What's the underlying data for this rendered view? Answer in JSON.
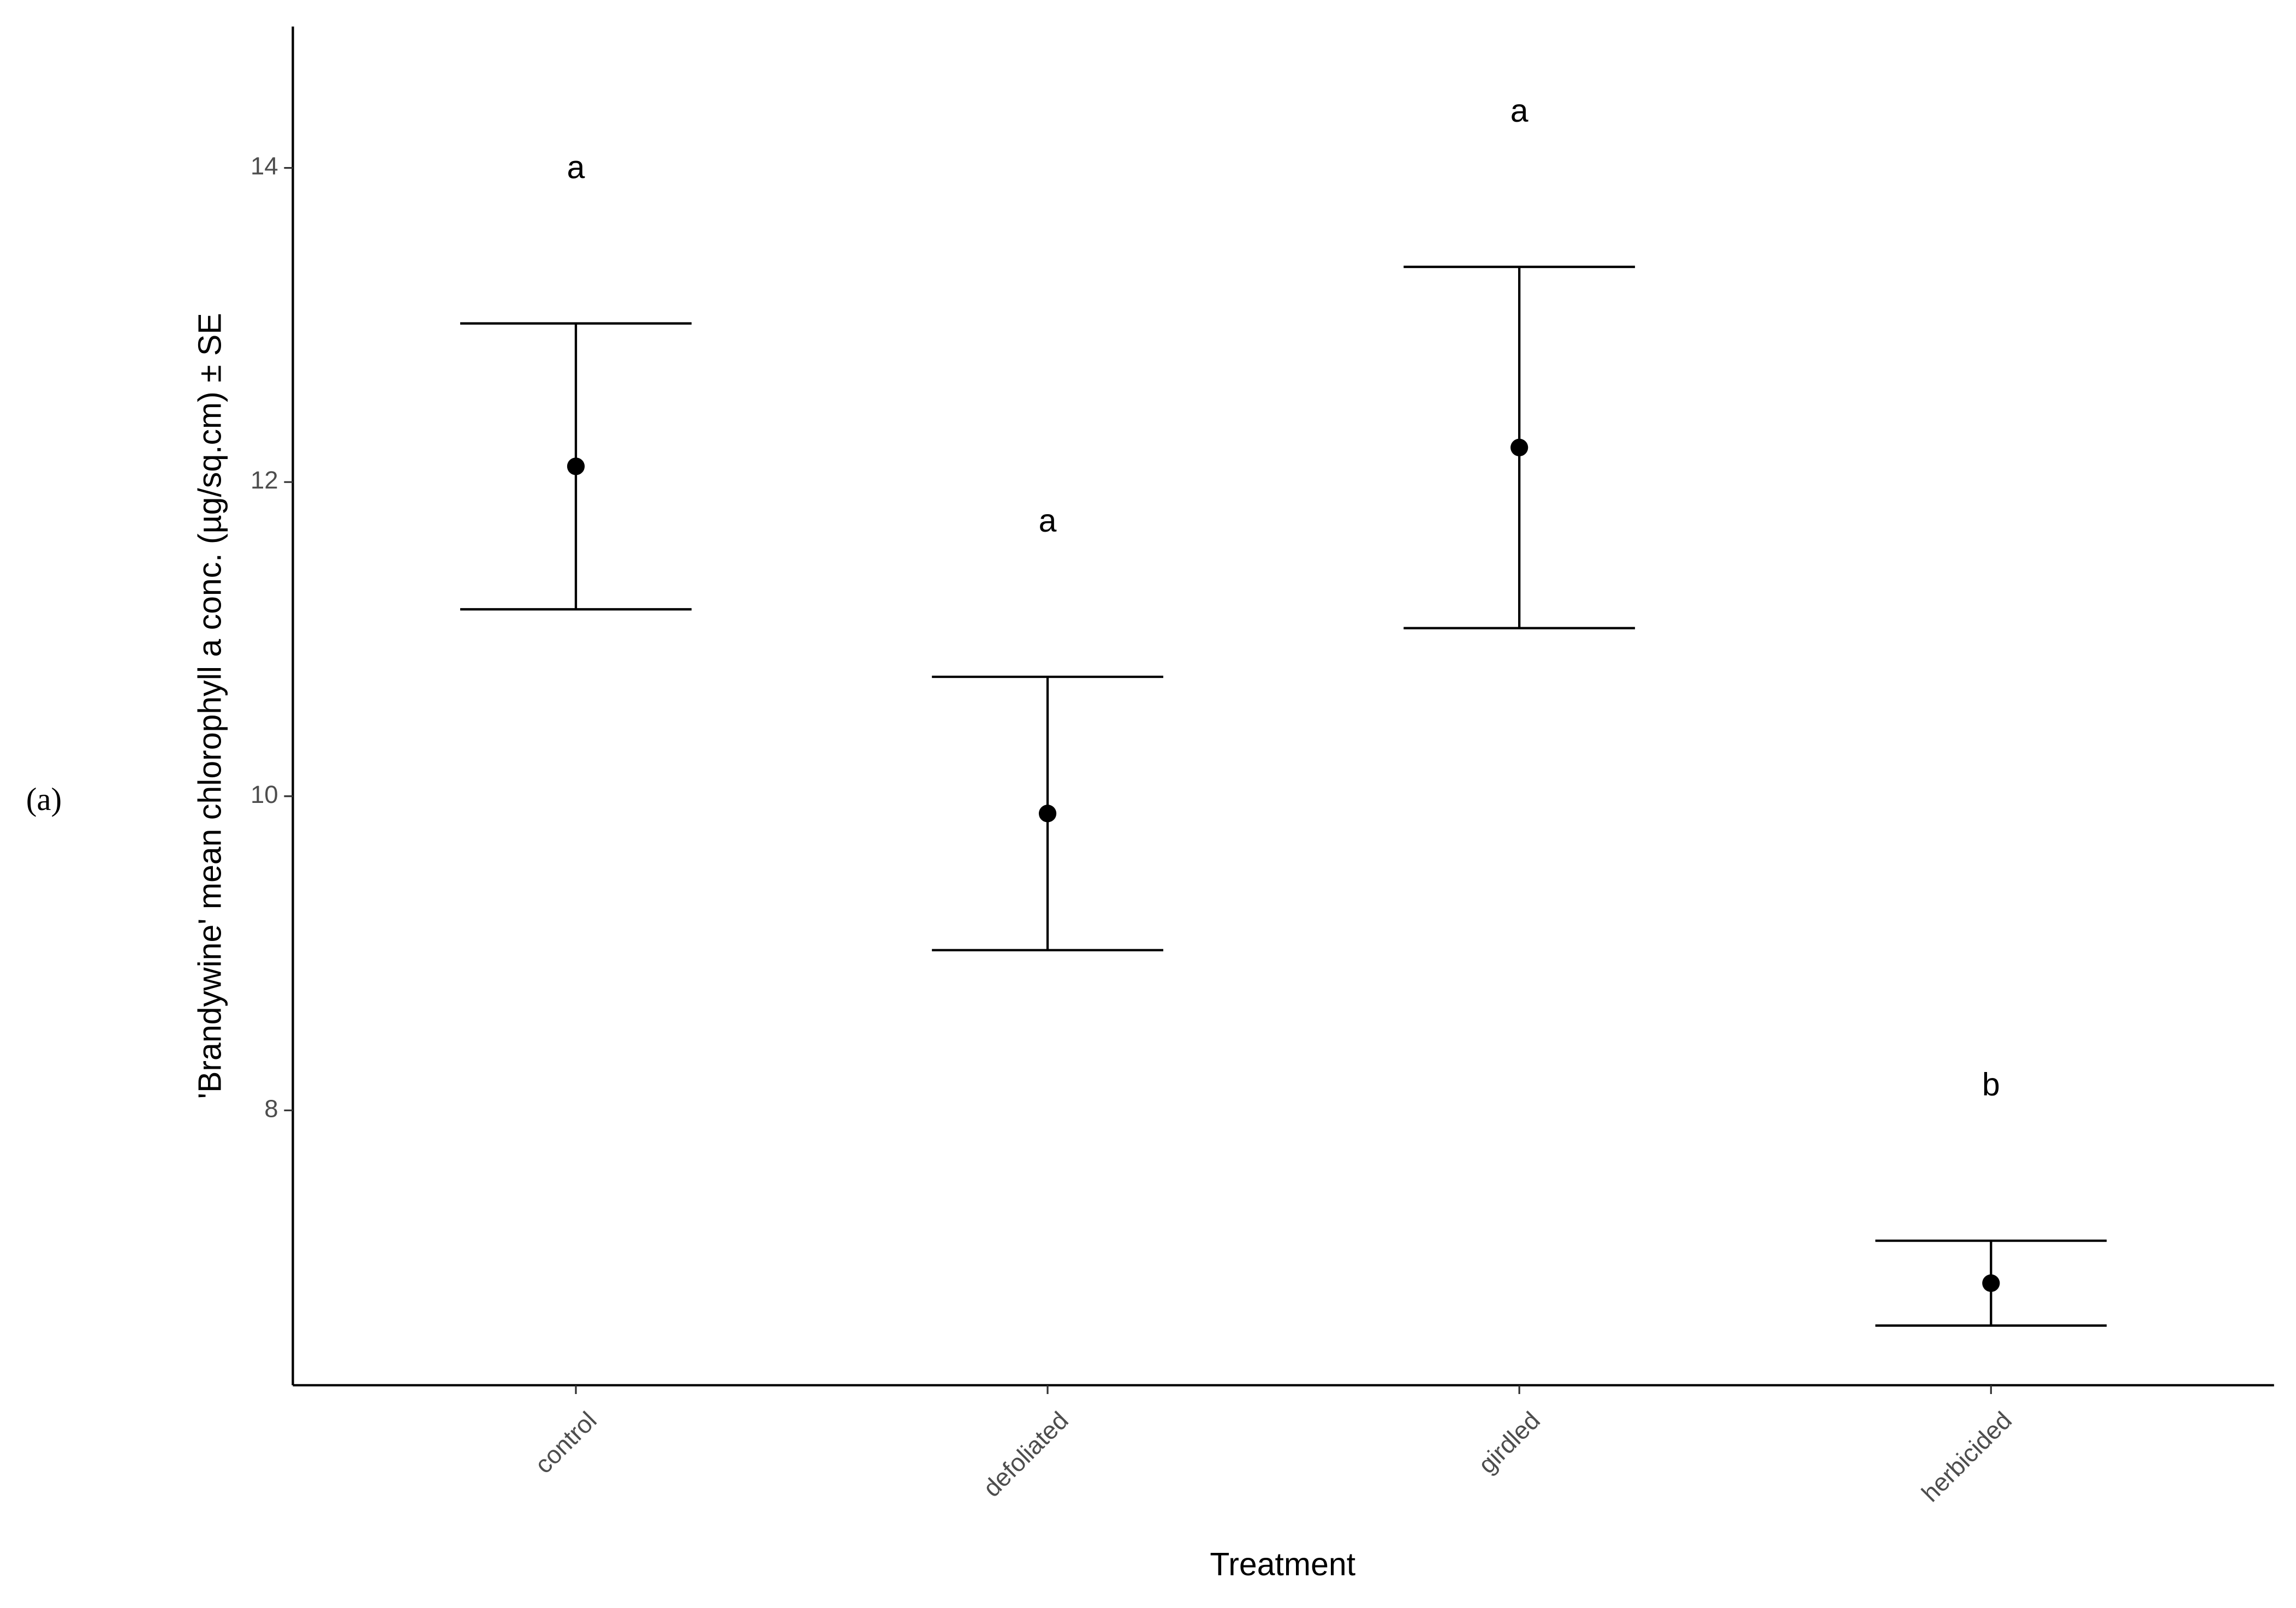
{
  "chart_data": {
    "type": "errorbar",
    "panel_label": "(a)",
    "x_label": "Treatment",
    "y_label": "'Brandywine' mean chlorophyll a conc. (µg/sq.cm) ± SE",
    "categories": [
      "control",
      "defoliated",
      "girdled",
      "herbicided"
    ],
    "values": [
      12.1,
      9.89,
      12.22,
      6.9
    ],
    "errors": [
      0.91,
      0.87,
      1.15,
      0.27
    ],
    "group_labels": [
      "a",
      "a",
      "a",
      "b"
    ],
    "color": "#000000",
    "ylim": [
      6.25,
      14.9
    ],
    "yticks": [
      8,
      10,
      12,
      14
    ],
    "grid": false
  }
}
